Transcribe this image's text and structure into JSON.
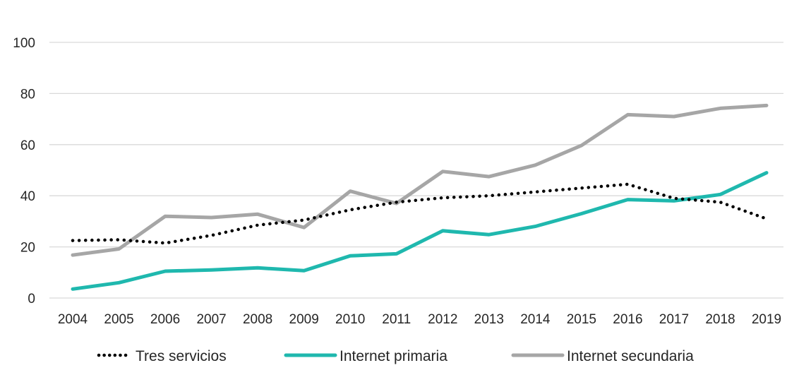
{
  "chart_data": {
    "type": "line",
    "title": "",
    "xlabel": "",
    "ylabel": "",
    "x": [
      "2004",
      "2005",
      "2006",
      "2007",
      "2008",
      "2009",
      "2010",
      "2011",
      "2012",
      "2013",
      "2014",
      "2015",
      "2016",
      "2017",
      "2018",
      "2019"
    ],
    "ylim": [
      0,
      100
    ],
    "yticks": [
      0,
      20,
      40,
      60,
      80,
      100
    ],
    "grid": true,
    "legend_position": "bottom",
    "series": [
      {
        "name": "Tres servicios",
        "color": "#000000",
        "style": "dotted",
        "values": [
          22.5,
          22.8,
          21.5,
          24.5,
          28.5,
          30.5,
          34.5,
          37.5,
          39.2,
          40.0,
          41.5,
          43.0,
          44.5,
          39.0,
          37.5,
          31.0
        ]
      },
      {
        "name": "Internet primaria",
        "color": "#1FB8AE",
        "style": "solid",
        "values": [
          3.5,
          6.0,
          10.5,
          11.0,
          11.8,
          10.7,
          16.5,
          17.3,
          26.3,
          24.8,
          28.0,
          33.0,
          38.5,
          38.0,
          40.5,
          49.0
        ]
      },
      {
        "name": "Internet secundaria",
        "color": "#A6A6A6",
        "style": "solid",
        "values": [
          16.8,
          19.2,
          32.0,
          31.5,
          32.8,
          27.6,
          41.8,
          37.0,
          49.5,
          47.5,
          52.0,
          59.7,
          71.7,
          71.0,
          74.2,
          75.3
        ]
      }
    ]
  }
}
